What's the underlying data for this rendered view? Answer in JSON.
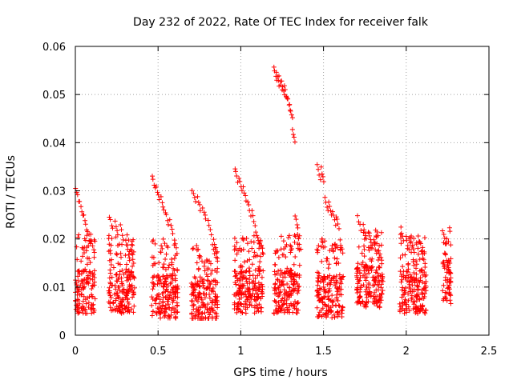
{
  "chart_data": {
    "type": "scatter",
    "title": "Day 232 of 2022, Rate Of TEC Index for receiver falk",
    "xlabel": "GPS time / hours",
    "ylabel": "ROTI / TECUs",
    "xlim": [
      0,
      2.5
    ],
    "ylim": [
      0,
      0.06
    ],
    "x_ticks": [
      0,
      0.5,
      1,
      1.5,
      2,
      2.5
    ],
    "x_tick_labels": [
      "0",
      "0.5",
      "1",
      "1.5",
      "2",
      "2.5"
    ],
    "y_ticks": [
      0,
      0.01,
      0.02,
      0.03,
      0.04,
      0.05,
      0.06
    ],
    "y_tick_labels": [
      "0",
      "0.01",
      "0.02",
      "0.03",
      "0.04",
      "0.05",
      "0.06"
    ],
    "grid": true,
    "marker": "+",
    "marker_color": "#ff0000",
    "clusters": [
      {
        "x_range": [
          0.0,
          0.12
        ],
        "base": 0.009,
        "peaks": [
          0.031,
          0.028,
          0.025,
          0.022,
          0.02
        ]
      },
      {
        "x_range": [
          0.2,
          0.36
        ],
        "base": 0.009,
        "peaks": [
          0.025,
          0.024,
          0.023,
          0.02,
          0.018
        ]
      },
      {
        "x_range": [
          0.46,
          0.62
        ],
        "base": 0.008,
        "peaks": [
          0.0335,
          0.031,
          0.029,
          0.026,
          0.024,
          0.02
        ]
      },
      {
        "x_range": [
          0.7,
          0.86
        ],
        "base": 0.007,
        "peaks": [
          0.0305,
          0.029,
          0.027,
          0.024,
          0.02
        ]
      },
      {
        "x_range": [
          0.96,
          1.14
        ],
        "base": 0.009,
        "peaks": [
          0.035,
          0.033,
          0.031,
          0.028,
          0.026,
          0.022,
          0.02
        ]
      },
      {
        "x_range": [
          1.2,
          1.36
        ],
        "base": 0.009,
        "peaks": [
          0.056,
          0.055,
          0.054,
          0.053,
          0.052,
          0.05,
          0.048,
          0.043,
          0.025,
          0.021
        ]
      },
      {
        "x_range": [
          1.46,
          1.62
        ],
        "base": 0.008,
        "peaks": [
          0.0355,
          0.035,
          0.029,
          0.028,
          0.026,
          0.025,
          0.02
        ]
      },
      {
        "x_range": [
          1.7,
          1.86
        ],
        "base": 0.01,
        "peaks": [
          0.025,
          0.023,
          0.022,
          0.02,
          0.018
        ]
      },
      {
        "x_range": [
          1.96,
          2.12
        ],
        "base": 0.009,
        "peaks": [
          0.0225,
          0.021,
          0.02,
          0.019,
          0.018
        ]
      },
      {
        "x_range": [
          2.22,
          2.27
        ],
        "base": 0.011,
        "peaks": [
          0.022,
          0.017,
          0.015
        ]
      }
    ]
  }
}
